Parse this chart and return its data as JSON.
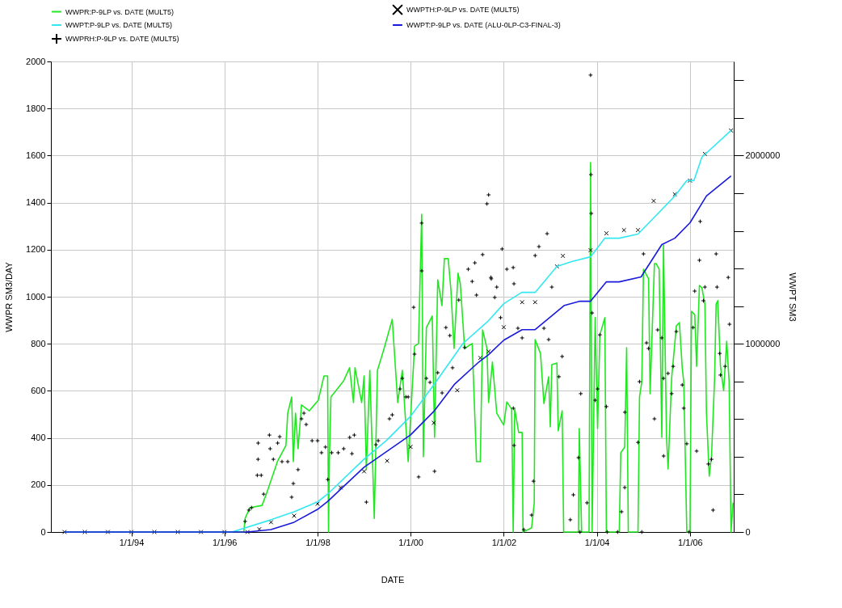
{
  "chart_data": {
    "type": "line",
    "xlabel": "DATE",
    "ylabel": "WWPR SM3/DAY",
    "y2label": "WWPT SM3",
    "xlim": [
      "1992-04-10",
      "2006-12-10"
    ],
    "xticks": [
      {
        "value": "1994-01-01",
        "label": "1/1/94"
      },
      {
        "value": "1996-01-01",
        "label": "1/1/96"
      },
      {
        "value": "1998-01-01",
        "label": "1/1/98"
      },
      {
        "value": "2000-01-01",
        "label": "1/1/00"
      },
      {
        "value": "2002-01-01",
        "label": "1/1/02"
      },
      {
        "value": "2004-01-01",
        "label": "1/1/04"
      },
      {
        "value": "2006-01-01",
        "label": "1/1/06"
      }
    ],
    "ylim": [
      0,
      2000
    ],
    "yticks": [
      0,
      200,
      400,
      600,
      800,
      1000,
      1200,
      1400,
      1600,
      1800,
      2000
    ],
    "y2lim": [
      0,
      2500000
    ],
    "y2ticks": [
      0,
      {
        "value": 200000,
        "label": null
      },
      {
        "value": 400000,
        "label": null
      },
      {
        "value": 600000,
        "label": null
      },
      {
        "value": 800000,
        "label": null
      },
      1000000,
      {
        "value": 1200000,
        "label": null
      },
      {
        "value": 1400000,
        "label": null
      },
      {
        "value": 1600000,
        "label": null
      },
      {
        "value": 1800000,
        "label": null
      },
      2000000,
      {
        "value": 2200000,
        "label": null
      },
      {
        "value": 2400000,
        "label": null
      }
    ],
    "grid": true,
    "legend": "top",
    "series": [
      {
        "name": "WWPR:P-9LP vs. DATE (MULT5)",
        "type": "line",
        "color": "#22e622",
        "x": [
          "1992-07-25",
          "1996-06-01",
          "1996-06-12",
          "1996-07-19",
          "1996-10-22",
          "1996-11-25",
          "1997-02-20",
          "1997-04-28",
          "1997-05-12",
          "1997-06-12",
          "1997-06-25",
          "1997-07-12",
          "1997-08-01",
          "1997-08-28",
          "1997-10-28",
          "1998-01-07",
          "1998-02-20",
          "1998-03-21",
          "1998-03-28",
          "1998-04-04",
          "1998-04-16",
          "1998-07-25",
          "1998-09-09",
          "1998-10-10",
          "1998-10-22",
          "1998-12-13",
          "1999-01-01",
          "1999-01-19",
          "1999-02-15",
          "1999-03-22",
          "1999-04-16",
          "1999-06-07",
          "1999-08-10",
          "1999-09-22",
          "1999-10-28",
          "1999-12-13",
          "2000-02-01",
          "2000-03-03",
          "2000-03-28",
          "2000-04-10",
          "2000-05-04",
          "2000-06-19",
          "2000-07-07",
          "2000-08-01",
          "2000-09-03",
          "2000-09-22",
          "2000-10-22",
          "2000-11-12",
          "2000-12-07",
          "2001-01-07",
          "2001-01-25",
          "2001-02-28",
          "2001-04-28",
          "2001-06-01",
          "2001-07-01",
          "2001-07-19",
          "2001-08-22",
          "2001-09-04",
          "2001-10-04",
          "2001-11-07",
          "2002-01-01",
          "2002-01-25",
          "2002-03-04",
          "2002-03-16",
          "2002-03-28",
          "2002-04-28",
          "2002-05-25",
          "2002-06-01",
          "2002-08-07",
          "2002-08-28",
          "2002-09-04",
          "2002-10-16",
          "2002-11-12",
          "2002-12-19",
          "2003-01-01",
          "2003-01-13",
          "2003-02-22",
          "2003-03-04",
          "2003-04-04",
          "2003-04-16",
          "2003-08-10",
          "2003-08-16",
          "2003-09-04",
          "2003-11-01",
          "2003-11-13",
          "2003-11-25",
          "2003-12-19",
          "2004-01-07",
          "2004-01-25",
          "2004-03-04",
          "2004-03-16",
          "2004-06-25",
          "2004-07-07",
          "2004-08-07",
          "2004-08-22",
          "2004-09-04",
          "2004-11-19",
          "2004-12-01",
          "2004-12-19",
          "2005-01-01",
          "2005-02-10",
          "2005-02-22",
          "2005-03-28",
          "2005-04-10",
          "2005-05-04",
          "2005-05-25",
          "2005-06-07",
          "2005-07-01",
          "2005-07-13",
          "2005-08-10",
          "2005-09-16",
          "2005-10-10",
          "2005-11-01",
          "2005-11-13",
          "2005-12-07",
          "2006-01-01",
          "2006-01-13",
          "2006-02-07",
          "2006-02-22",
          "2006-03-16",
          "2006-04-04",
          "2006-04-28",
          "2006-05-10",
          "2006-06-01",
          "2006-06-19",
          "2006-07-13",
          "2006-07-25",
          "2006-08-07",
          "2006-08-28",
          "2006-09-22",
          "2006-10-16",
          "2006-11-04",
          "2006-11-19",
          "2006-12-05"
        ],
        "values": [
          0,
          0,
          58,
          103,
          113,
          161,
          299,
          368,
          505,
          574,
          299,
          505,
          354,
          540,
          515,
          560,
          663,
          663,
          0,
          309,
          574,
          643,
          698,
          550,
          698,
          550,
          663,
          265,
          687,
          58,
          687,
          780,
          904,
          550,
          687,
          299,
          790,
          801,
          1350,
          320,
          869,
          918,
          402,
          1072,
          962,
          1162,
          1162,
          1031,
          780,
          1100,
          1055,
          780,
          801,
          299,
          299,
          859,
          780,
          550,
          722,
          505,
          454,
          553,
          522,
          0,
          522,
          423,
          423,
          0,
          17,
          124,
          818,
          759,
          546,
          660,
          447,
          711,
          718,
          430,
          515,
          0,
          0,
          440,
          0,
          0,
          1570,
          0,
          911,
          440,
          838,
          911,
          0,
          0,
          337,
          361,
          783,
          0,
          0,
          574,
          639,
          1117,
          1076,
          588,
          1141,
          1141,
          1117,
          402,
          1220,
          402,
          268,
          653,
          876,
          890,
          698,
          639,
          0,
          0,
          938,
          924,
          704,
          1048,
          1038,
          969,
          509,
          237,
          323,
          653,
          969,
          983,
          704,
          601,
          811,
          639,
          0,
          124
        ]
      },
      {
        "name": "WWPTH:P-9LP vs. DATE (MULT5)",
        "type": "scatter",
        "marker": "x",
        "axis": "y2",
        "color": "#000000",
        "x": [
          "1992-07-25",
          "1993-01-01",
          "1993-07-01",
          "1994-01-01",
          "1994-07-01",
          "1995-01-01",
          "1995-07-01",
          "1996-01-01",
          "1996-07-01",
          "1996-10-01",
          "1997-01-01",
          "1997-07-01",
          "1998-01-01",
          "1998-07-01",
          "1999-01-01",
          "1999-07-01",
          "2000-01-01",
          "2000-07-01",
          "2001-01-01",
          "2001-07-01",
          "2001-09-04",
          "2002-01-01",
          "2002-05-25",
          "2002-09-04",
          "2003-02-22",
          "2003-04-10",
          "2003-11-13",
          "2004-03-16",
          "2004-08-01",
          "2004-11-19",
          "2005-03-22",
          "2005-09-04",
          "2006-01-01",
          "2006-04-28",
          "2006-11-19"
        ],
        "values": [
          0,
          0,
          0,
          0,
          0,
          0,
          0,
          0,
          0,
          15000,
          52000,
          86000,
          150000,
          236000,
          322000,
          378000,
          452000,
          580000,
          753000,
          925000,
          959000,
          1088000,
          1221000,
          1221000,
          1411000,
          1467000,
          1497000,
          1587000,
          1604000,
          1604000,
          1759000,
          1794000,
          1867000,
          2009000,
          2133000
        ]
      },
      {
        "name": "WWPT:P-9LP vs. DATE (MULT5)",
        "type": "line",
        "axis": "y2",
        "color": "#33e8f0",
        "x": [
          "1992-07-25",
          "1996-03-01",
          "1997-01-01",
          "1997-07-01",
          "1998-01-01",
          "1998-03-22",
          "1999-01-01",
          "1999-06-25",
          "2000-01-01",
          "2000-07-07",
          "2001-02-15",
          "2001-09-04",
          "2002-01-01",
          "2002-05-22",
          "2002-09-04",
          "2003-02-22",
          "2003-06-19",
          "2003-11-13",
          "2004-03-04",
          "2004-06-25",
          "2004-11-19",
          "2005-03-10",
          "2005-09-04",
          "2005-12-07",
          "2006-02-01",
          "2006-04-04",
          "2006-11-19"
        ],
        "values": [
          0,
          0,
          65000,
          107000,
          160000,
          202000,
          387000,
          486000,
          615000,
          787000,
          1002000,
          1123000,
          1213000,
          1273000,
          1273000,
          1411000,
          1437000,
          1462000,
          1561000,
          1561000,
          1583000,
          1660000,
          1785000,
          1867000,
          1867000,
          1991000,
          2133000
        ]
      },
      {
        "name": "WWPT:P-9LP vs. DATE (ALU-0LP-C3-FINAL-3)",
        "type": "line",
        "axis": "y2",
        "color": "#1a1adc",
        "x": [
          "1992-07-25",
          "1996-07-01",
          "1997-01-01",
          "1997-07-01",
          "1998-01-01",
          "1998-03-22",
          "1999-01-01",
          "2000-01-01",
          "2000-07-07",
          "2000-12-13",
          "2001-06-19",
          "2001-09-04",
          "2002-01-01",
          "2002-05-25",
          "2002-09-04",
          "2003-04-22",
          "2003-08-22",
          "2003-11-13",
          "2004-03-16",
          "2004-06-25",
          "2004-12-13",
          "2005-05-25",
          "2005-09-04",
          "2006-01-01",
          "2006-05-10",
          "2006-11-19"
        ],
        "values": [
          0,
          0,
          13000,
          52000,
          120000,
          163000,
          344000,
          516000,
          645000,
          787000,
          903000,
          942000,
          1019000,
          1075000,
          1075000,
          1204000,
          1226000,
          1226000,
          1329000,
          1329000,
          1355000,
          1527000,
          1561000,
          1643000,
          1785000,
          1892000
        ]
      },
      {
        "name": "WWPRH:P-9LP vs. DATE (MULT5)",
        "type": "scatter",
        "marker": "cross",
        "color": "#000000",
        "x": [
          "1996-06-12",
          "1996-07-12",
          "1996-08-01",
          "1996-09-15",
          "1996-09-21",
          "1996-09-22",
          "1996-10-16",
          "1996-11-04",
          "1996-12-19",
          "1996-12-25",
          "1997-01-19",
          "1997-02-22",
          "1997-03-10",
          "1997-03-28",
          "1997-05-12",
          "1997-06-12",
          "1997-06-25",
          "1997-08-01",
          "1997-08-28",
          "1997-09-16",
          "1997-10-04",
          "1997-11-19",
          "1998-01-01",
          "1998-02-01",
          "1998-03-04",
          "1998-03-22",
          "1998-04-22",
          "1998-06-12",
          "1998-07-25",
          "1998-09-10",
          "1998-09-28",
          "1998-10-16",
          "1999-01-19",
          "1999-04-04",
          "1999-04-22",
          "1999-07-19",
          "1999-08-10",
          "1999-10-10",
          "1999-10-28",
          "1999-11-25",
          "1999-12-13",
          "2000-01-25",
          "2000-02-01",
          "2000-03-04",
          "2000-03-28",
          "2000-03-29",
          "2000-05-04",
          "2000-06-01",
          "2000-07-07",
          "2000-08-01",
          "2000-09-04",
          "2000-10-04",
          "2000-11-04",
          "2000-11-25",
          "2001-01-13",
          "2001-02-28",
          "2001-03-28",
          "2001-04-28",
          "2001-05-19",
          "2001-06-01",
          "2001-07-19",
          "2001-08-22",
          "2001-09-04",
          "2001-09-22",
          "2001-09-25",
          "2001-10-22",
          "2001-11-07",
          "2001-12-07",
          "2001-12-19",
          "2002-01-25",
          "2002-03-16",
          "2002-03-17",
          "2002-03-22",
          "2002-03-23",
          "2002-04-22",
          "2002-05-25",
          "2002-06-07",
          "2002-08-07",
          "2002-08-22",
          "2002-09-04",
          "2002-10-04",
          "2002-11-12",
          "2002-12-07",
          "2002-12-19",
          "2003-01-13",
          "2003-03-10",
          "2003-04-04",
          "2003-06-07",
          "2003-07-01",
          "2003-08-10",
          "2003-08-22",
          "2003-08-28",
          "2003-10-16",
          "2003-11-13",
          "2003-11-16",
          "2003-11-19",
          "2003-11-25",
          "2003-12-19",
          "2004-01-07",
          "2004-01-25",
          "2004-03-16",
          "2004-03-22",
          "2004-06-12",
          "2004-07-13",
          "2004-08-07",
          "2004-08-08",
          "2004-11-19",
          "2004-12-01",
          "2004-12-19",
          "2005-01-01",
          "2005-01-25",
          "2005-02-10",
          "2005-03-28",
          "2005-04-22",
          "2005-05-25",
          "2005-06-07",
          "2005-06-08",
          "2005-07-13",
          "2005-08-10",
          "2005-08-22",
          "2005-09-16",
          "2005-11-01",
          "2005-11-13",
          "2005-12-07",
          "2005-12-25",
          "2006-01-25",
          "2006-02-07",
          "2006-02-22",
          "2006-03-16",
          "2006-03-22",
          "2006-04-16",
          "2006-04-28",
          "2006-05-25",
          "2006-06-19",
          "2006-07-01",
          "2006-07-25",
          "2006-08-01",
          "2006-08-22",
          "2006-08-28",
          "2006-10-04",
          "2006-10-28",
          "2006-11-07"
        ],
        "values": [
          45,
          93,
          103,
          241,
          309,
          378,
          241,
          161,
          412,
          354,
          309,
          378,
          405,
          299,
          299,
          148,
          206,
          265,
          481,
          505,
          457,
          388,
          388,
          337,
          361,
          223,
          337,
          337,
          354,
          402,
          333,
          412,
          127,
          371,
          388,
          481,
          498,
          608,
          653,
          574,
          574,
          955,
          756,
          234,
          1313,
          1110,
          653,
          636,
          258,
          677,
          591,
          869,
          835,
          698,
          986,
          784,
          1117,
          1065,
          1144,
          1007,
          1179,
          1395,
          1433,
          1082,
          1076,
          997,
          1041,
          911,
          1203,
          1117,
          1124,
          526,
          1055,
          368,
          866,
          825,
          10,
          72,
          216,
          1175,
          1213,
          866,
          1268,
          818,
          1041,
          660,
          746,
          52,
          158,
          316,
          0,
          588,
          124,
          1942,
          1519,
          1354,
          931,
          560,
          608,
          838,
          533,
          0,
          0,
          86,
          189,
          509,
          381,
          639,
          0,
          1182,
          804,
          780,
          481,
          859,
          825,
          653,
          323,
          674,
          588,
          704,
          852,
          625,
          526,
          375,
          0,
          869,
          1024,
          344,
          1155,
          1320,
          983,
          1041,
          289,
          309,
          93,
          1182,
          1041,
          759,
          667,
          704,
          1082,
          883
        ]
      }
    ]
  }
}
